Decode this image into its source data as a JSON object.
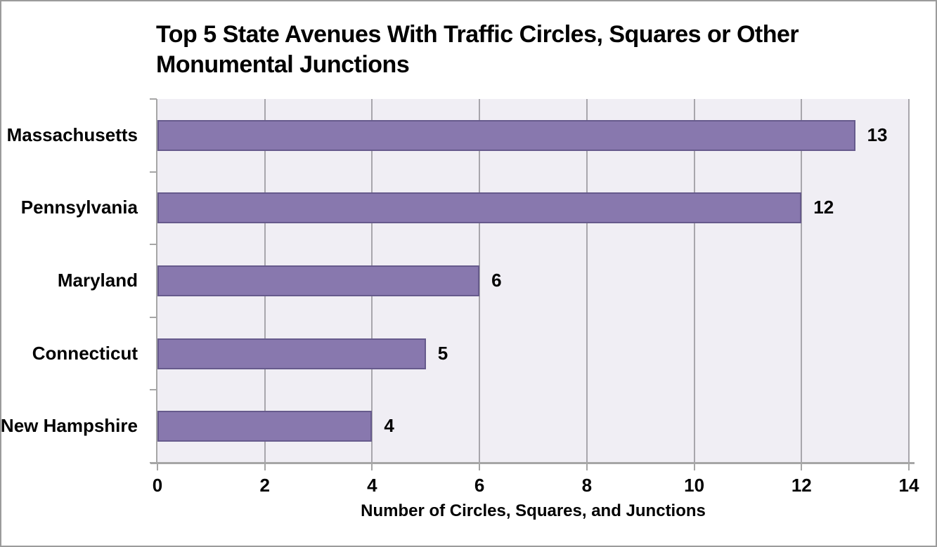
{
  "chart_data": {
    "type": "bar",
    "orientation": "horizontal",
    "title": "Top 5 State Avenues With Traffic Circles, Squares or Other Monumental Junctions",
    "title_lines": [
      "Top 5 State Avenues With Traffic Circles, Squares or Other",
      "Monumental Junctions"
    ],
    "categories": [
      "Massachusetts",
      "Pennsylvania",
      "Maryland",
      "Connecticut",
      "New Hampshire"
    ],
    "values": [
      13,
      12,
      6,
      5,
      4
    ],
    "data_labels": [
      "13",
      "12",
      "6",
      "5",
      "4"
    ],
    "xlabel": "Number of Circles, Squares, and Junctions",
    "ylabel": "",
    "xlim": [
      0,
      14
    ],
    "xticks": [
      0,
      2,
      4,
      6,
      8,
      10,
      12,
      14
    ],
    "grid": true,
    "legend": false,
    "colors": {
      "bar_fill": "#8878ae",
      "bar_border": "#665a8c",
      "plot_background": "#f0eef4",
      "gridline": "#a8a6ac",
      "axis": "#a6a6a6",
      "text": "#000000",
      "figure_border": "#9b9b9b"
    }
  }
}
